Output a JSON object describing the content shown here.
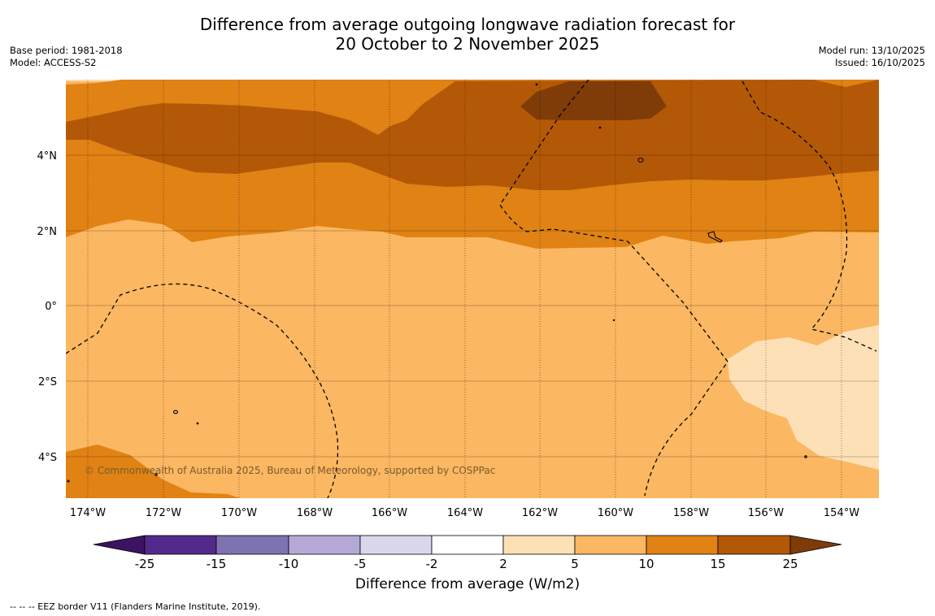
{
  "title": {
    "line1": "Difference from average outgoing longwave radiation forecast for",
    "line2": "20 October to 2 November 2025"
  },
  "meta_left": {
    "base_period": "Base period: 1981-2018",
    "model": "Model: ACCESS-S2"
  },
  "meta_right": {
    "model_run": "Model run: 13/10/2025",
    "issued": "Issued: 16/10/2025"
  },
  "lat_labels": [
    "4°N",
    "2°N",
    "0°",
    "2°S",
    "4°S"
  ],
  "lon_labels": [
    "174°W",
    "172°W",
    "170°W",
    "168°W",
    "166°W",
    "164°W",
    "162°W",
    "160°W",
    "158°W",
    "156°W",
    "154°W"
  ],
  "copyright": "© Commonwealth of Australia 2025, Bureau of Meteorology, supported by COSPPac",
  "colorbar": {
    "title": "Difference from average (W/m2)",
    "ticks": [
      "-25",
      "-15",
      "-10",
      "-5",
      "-2",
      "2",
      "5",
      "10",
      "15",
      "25"
    ],
    "colors": [
      "#3c1363",
      "#532a8c",
      "#7f72b0",
      "#b4a9d6",
      "#dad7ed",
      "#ffffff",
      "#fee0b6",
      "#fbb761",
      "#e08214",
      "#b35807",
      "#7f3b08"
    ]
  },
  "footnote": "--  --  -- EEZ border V11 (Flanders Marine Institute, 2019)."
}
